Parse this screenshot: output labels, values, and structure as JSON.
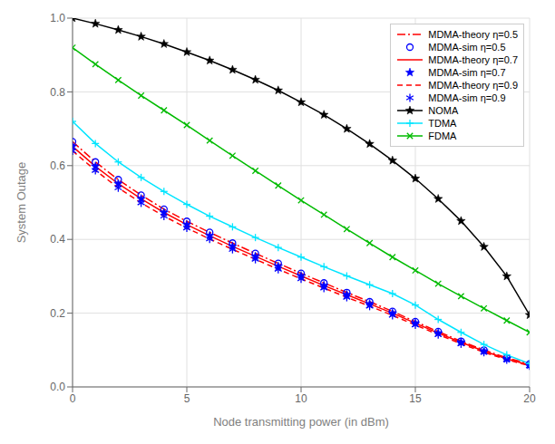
{
  "chart_data": {
    "type": "line",
    "xlabel": "Node transmitting power (in dBm)",
    "ylabel": "System Outage",
    "x": [
      0,
      1,
      2,
      3,
      4,
      5,
      6,
      7,
      8,
      9,
      10,
      11,
      12,
      13,
      14,
      15,
      16,
      17,
      18,
      19,
      20
    ],
    "xlim": [
      0,
      20
    ],
    "ylim": [
      0,
      1
    ],
    "xticks": [
      0,
      5,
      10,
      15,
      20
    ],
    "yticks": [
      {
        "value": 0,
        "label": "0.0"
      },
      0.2,
      0.4,
      0.6,
      0.8,
      {
        "value": 1,
        "label": "1.0"
      }
    ],
    "grid": true,
    "legend": "upper right",
    "series": [
      {
        "name": "MDMA-theory η=0.5",
        "color": "#ff0000",
        "line_style": "dashdot",
        "marker": "none",
        "values": [
          0.665,
          0.61,
          0.562,
          0.52,
          0.482,
          0.449,
          0.419,
          0.39,
          0.362,
          0.335,
          0.308,
          0.282,
          0.256,
          0.231,
          0.205,
          0.177,
          0.15,
          0.124,
          0.1,
          0.079,
          0.062
        ]
      },
      {
        "name": "MDMA-sim η=0.5",
        "color": "#0000ff",
        "line_style": "none",
        "marker": "circle",
        "values": [
          0.665,
          0.61,
          0.562,
          0.52,
          0.482,
          0.449,
          0.419,
          0.39,
          0.362,
          0.335,
          0.308,
          0.282,
          0.256,
          0.231,
          0.205,
          0.177,
          0.15,
          0.124,
          0.1,
          0.079,
          0.062
        ]
      },
      {
        "name": "MDMA-theory η=0.7",
        "color": "#ff0000",
        "line_style": "solid",
        "marker": "none",
        "values": [
          0.652,
          0.598,
          0.551,
          0.51,
          0.473,
          0.44,
          0.41,
          0.381,
          0.354,
          0.327,
          0.301,
          0.275,
          0.25,
          0.225,
          0.2,
          0.173,
          0.146,
          0.121,
          0.097,
          0.076,
          0.059
        ]
      },
      {
        "name": "MDMA-sim η=0.7",
        "color": "#0000ff",
        "line_style": "none",
        "marker": "star",
        "values": [
          0.652,
          0.598,
          0.551,
          0.51,
          0.473,
          0.44,
          0.41,
          0.381,
          0.354,
          0.327,
          0.301,
          0.275,
          0.25,
          0.225,
          0.2,
          0.173,
          0.146,
          0.121,
          0.097,
          0.076,
          0.059
        ]
      },
      {
        "name": "MDMA-theory η=0.9",
        "color": "#ff0000",
        "line_style": "dashed",
        "marker": "none",
        "values": [
          0.64,
          0.587,
          0.54,
          0.499,
          0.463,
          0.431,
          0.401,
          0.373,
          0.346,
          0.319,
          0.293,
          0.268,
          0.243,
          0.219,
          0.194,
          0.168,
          0.142,
          0.117,
          0.094,
          0.074,
          0.057
        ]
      },
      {
        "name": "MDMA-sim η=0.9",
        "color": "#0000ff",
        "line_style": "none",
        "marker": "asterisk",
        "values": [
          0.64,
          0.587,
          0.54,
          0.499,
          0.463,
          0.431,
          0.401,
          0.373,
          0.346,
          0.319,
          0.293,
          0.268,
          0.243,
          0.219,
          0.194,
          0.168,
          0.142,
          0.117,
          0.094,
          0.074,
          0.057
        ]
      },
      {
        "name": "NOMA",
        "color": "#000000",
        "line_style": "solid",
        "marker": "star",
        "values": [
          1.0,
          0.985,
          0.968,
          0.95,
          0.93,
          0.908,
          0.885,
          0.86,
          0.833,
          0.804,
          0.772,
          0.738,
          0.7,
          0.659,
          0.614,
          0.565,
          0.51,
          0.45,
          0.38,
          0.3,
          0.195
        ]
      },
      {
        "name": "TDMA",
        "color": "#00e5ff",
        "line_style": "solid",
        "marker": "plus",
        "values": [
          0.72,
          0.66,
          0.61,
          0.568,
          0.53,
          0.495,
          0.463,
          0.434,
          0.405,
          0.378,
          0.352,
          0.326,
          0.301,
          0.277,
          0.253,
          0.222,
          0.183,
          0.148,
          0.115,
          0.087,
          0.063
        ]
      },
      {
        "name": "FDMA",
        "color": "#00bb00",
        "line_style": "solid",
        "marker": "x",
        "values": [
          0.92,
          0.875,
          0.832,
          0.79,
          0.75,
          0.71,
          0.668,
          0.627,
          0.586,
          0.546,
          0.506,
          0.467,
          0.428,
          0.39,
          0.352,
          0.316,
          0.28,
          0.246,
          0.213,
          0.18,
          0.148
        ]
      }
    ]
  }
}
